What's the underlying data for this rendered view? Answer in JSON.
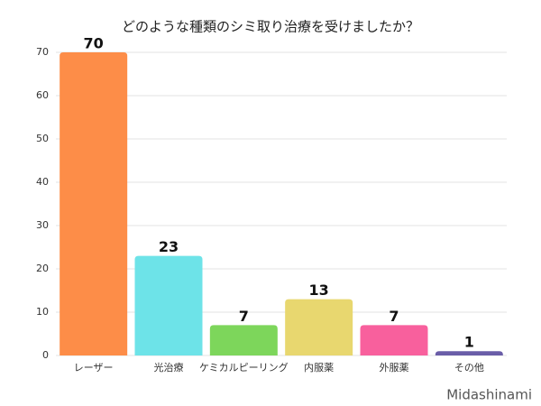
{
  "chart_data": {
    "type": "bar",
    "title": "どのような種類のシミ取り治療を受けましたか？",
    "categories": [
      "レーザー",
      "光治療",
      "ケミカルピーリング",
      "内服薬",
      "外服薬",
      "その他"
    ],
    "values": [
      70,
      23,
      7,
      13,
      7,
      1
    ],
    "colors": [
      "#fd8d48",
      "#6de3e8",
      "#7dd65b",
      "#e8d76f",
      "#f8609d",
      "#6a5da8"
    ],
    "ylim": [
      0,
      70
    ],
    "yticks": [
      0,
      10,
      20,
      30,
      40,
      50,
      60,
      70
    ],
    "grid": true,
    "watermark": "Midashinami"
  }
}
